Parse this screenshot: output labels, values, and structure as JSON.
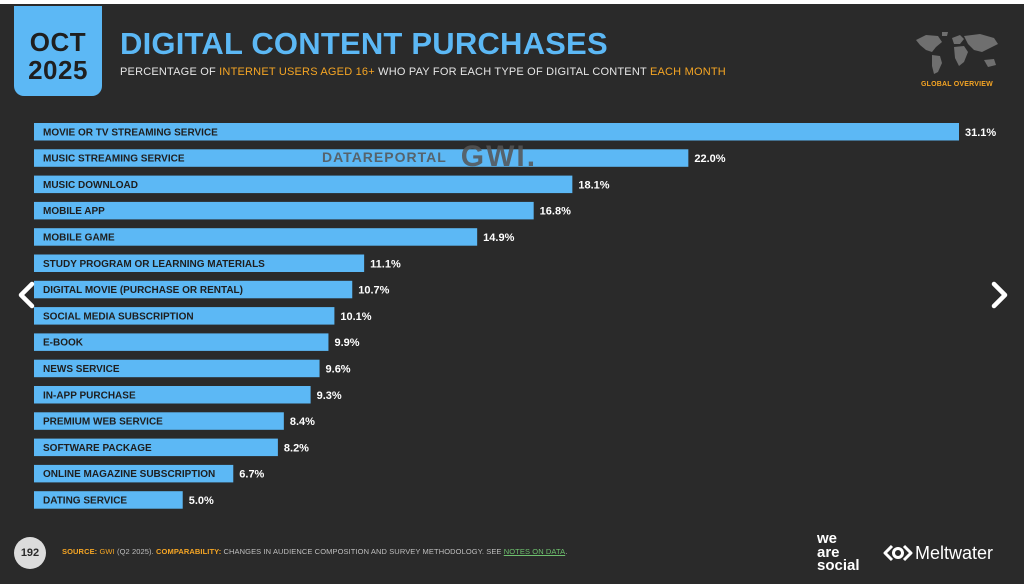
{
  "header": {
    "date_month": "OCT",
    "date_year": "2025",
    "title": "DIGITAL CONTENT PURCHASES",
    "subtitle": {
      "part1": "PERCENTAGE OF ",
      "part2": "INTERNET USERS AGED 16+",
      "part3": " WHO PAY FOR EACH TYPE OF DIGITAL CONTENT ",
      "part4": "EACH MONTH"
    },
    "global_overview": "GLOBAL OVERVIEW"
  },
  "watermark": {
    "datareportal": "DATAREPORTAL",
    "gwi": "GWI."
  },
  "chart_data": {
    "type": "bar",
    "orientation": "horizontal",
    "title": "DIGITAL CONTENT PURCHASES",
    "categories": [
      "MOVIE OR TV STREAMING SERVICE",
      "MUSIC STREAMING SERVICE",
      "MUSIC DOWNLOAD",
      "MOBILE APP",
      "MOBILE GAME",
      "STUDY PROGRAM OR LEARNING MATERIALS",
      "DIGITAL MOVIE (PURCHASE OR RENTAL)",
      "SOCIAL MEDIA SUBSCRIPTION",
      "E-BOOK",
      "NEWS SERVICE",
      "IN-APP PURCHASE",
      "PREMIUM WEB SERVICE",
      "SOFTWARE PACKAGE",
      "ONLINE MAGAZINE SUBSCRIPTION",
      "DATING SERVICE"
    ],
    "values": [
      31.1,
      22.0,
      18.1,
      16.8,
      14.9,
      11.1,
      10.7,
      10.1,
      9.9,
      9.6,
      9.3,
      8.4,
      8.2,
      6.7,
      5.0
    ],
    "value_labels": [
      "31.1%",
      "22.0%",
      "18.1%",
      "16.8%",
      "14.9%",
      "11.1%",
      "10.7%",
      "10.1%",
      "9.9%",
      "9.6%",
      "9.3%",
      "8.4%",
      "8.2%",
      "6.7%",
      "5.0%"
    ],
    "xlim": [
      0,
      31.1
    ],
    "unit": "%",
    "grid": false,
    "legend": "none",
    "bar_color": "#5cb8f5"
  },
  "footer": {
    "page_number": "192",
    "source_label": "SOURCE:",
    "source_gwi": "GWI",
    "source_text": " (Q2 2025). ",
    "comparability_label": "COMPARABILITY:",
    "comparability_text": " CHANGES IN AUDIENCE COMPOSITION AND SURVEY METHODOLOGY. SEE ",
    "notes_link": "NOTES ON DATA",
    "period": ".",
    "logo_we": "we",
    "logo_are": "are",
    "logo_social": "social",
    "logo_meltwater": "Meltwater"
  },
  "colors": {
    "background": "#2a2a2a",
    "accent_blue": "#5cb8f5",
    "accent_orange": "#f5a524"
  },
  "icons": {
    "nav_left": "chevron-left-icon",
    "nav_right": "chevron-right-icon",
    "map": "world-map-icon"
  }
}
